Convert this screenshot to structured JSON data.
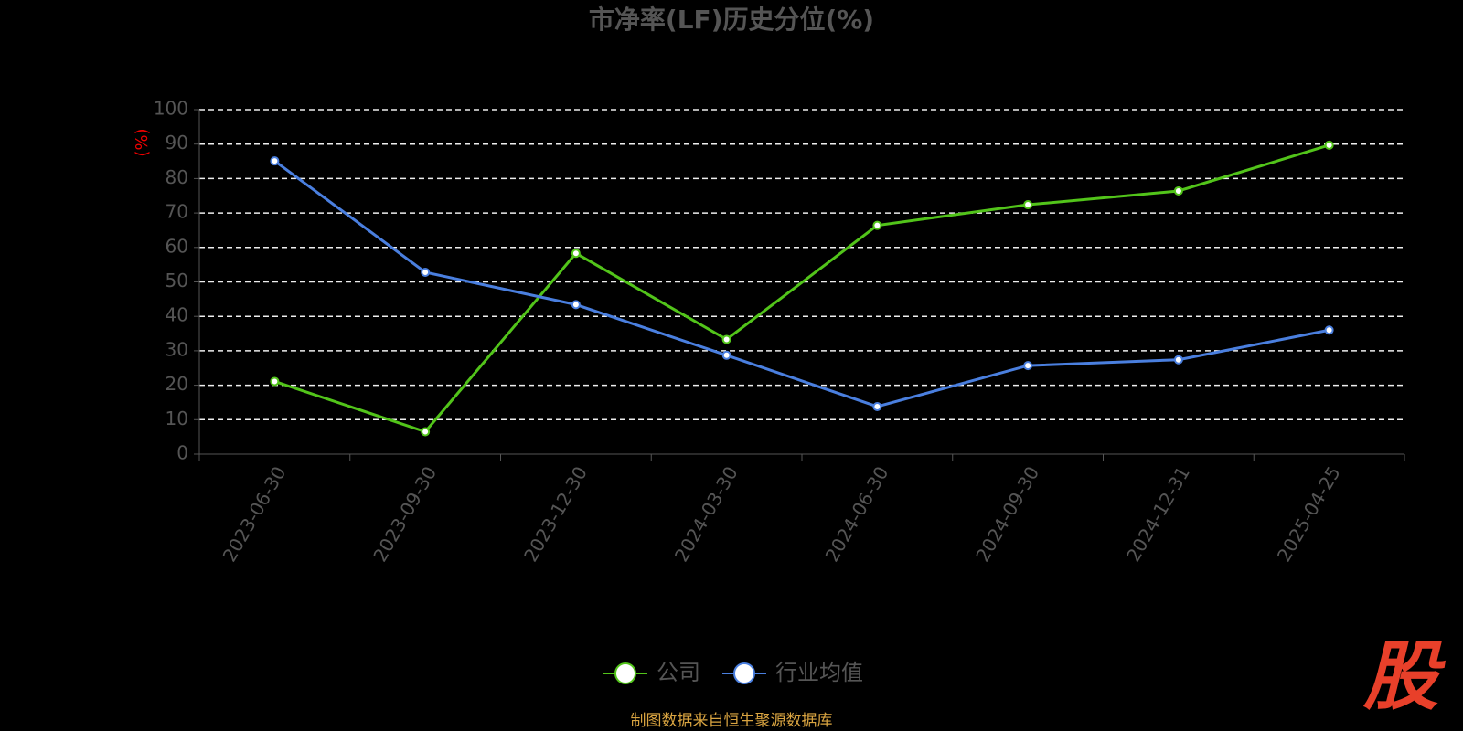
{
  "chart_data": {
    "type": "line",
    "title": "市净率(LF)历史分位(%)",
    "y_label": "(%)",
    "categories": [
      "2023-06-30",
      "2023-09-30",
      "2023-12-30",
      "2024-03-30",
      "2024-06-30",
      "2024-09-30",
      "2024-12-31",
      "2025-04-25"
    ],
    "series": [
      {
        "name": "公司",
        "color": "#52c41a",
        "values": [
          21.1,
          6.5,
          58.3,
          33.3,
          66.4,
          72.4,
          76.4,
          89.7
        ]
      },
      {
        "name": "行业均值",
        "color": "#4a7fdf",
        "values": [
          85.1,
          52.8,
          43.4,
          28.7,
          13.8,
          25.7,
          27.4,
          36.0
        ]
      }
    ],
    "ylim": [
      0,
      100
    ],
    "yticks": [
      0,
      10,
      20,
      30,
      40,
      50,
      60,
      70,
      80,
      90,
      100
    ],
    "grid": true,
    "source": "制图数据来自恒生聚源数据库",
    "logo": "股"
  }
}
